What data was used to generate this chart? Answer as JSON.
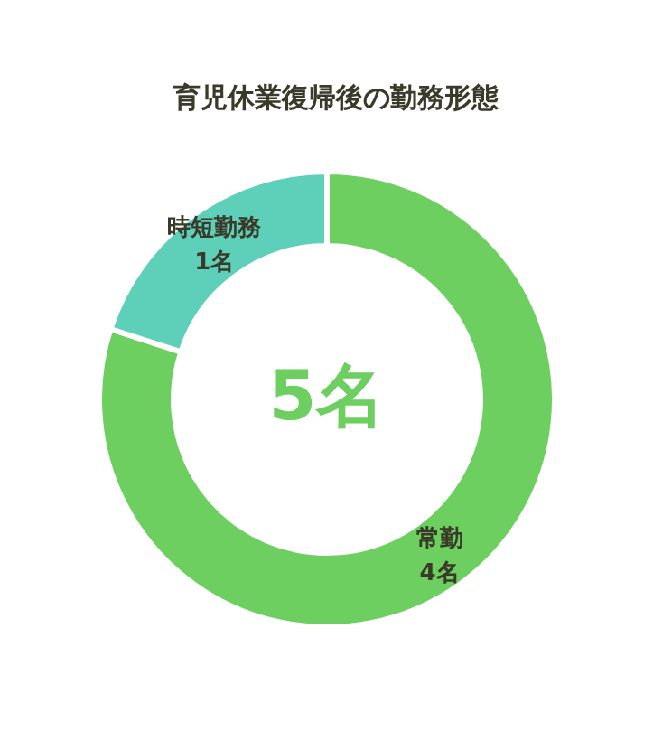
{
  "chart_data": {
    "type": "donut",
    "title": "育児休業復帰後の勤務形態",
    "categories": [
      "常勤",
      "時短勤務"
    ],
    "values": [
      4,
      1
    ],
    "colors": [
      "#6ccf5f",
      "#5ecfb8"
    ],
    "value_labels": [
      "4名",
      "1名"
    ],
    "annotations": [
      "5名"
    ]
  }
}
